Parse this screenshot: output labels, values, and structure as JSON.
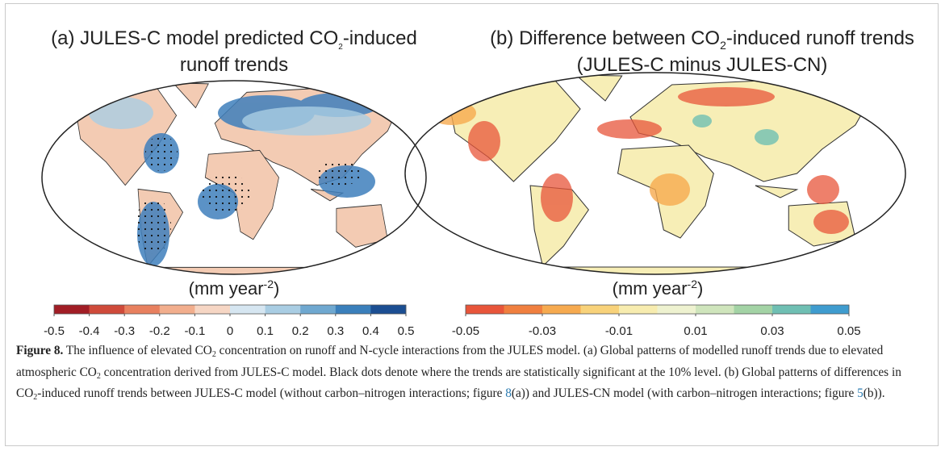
{
  "panels": [
    {
      "title": [
        "(a) JULES-C model predicted CO",
        "2",
        "-induced",
        "runoff trends"
      ],
      "unit": [
        "(mm year",
        "-2",
        ")"
      ],
      "range": [
        -0.5,
        0.5
      ],
      "ticks": [
        -0.5,
        -0.4,
        -0.3,
        -0.2,
        -0.1,
        0,
        0.1,
        0.2,
        0.3,
        0.4,
        0.5
      ],
      "colors": [
        "#a11d25",
        "#cf4a3a",
        "#e8805f",
        "#f2ae8d",
        "#f6d6c4",
        "#d6e6f1",
        "#a9cde3",
        "#6fa8d0",
        "#3a7fbb",
        "#1b4e92"
      ]
    },
    {
      "title": [
        "(b) Difference between CO",
        "2",
        "-induced runoff trends",
        "(JULES-C minus JULES-CN)"
      ],
      "unit": [
        "(mm year",
        "-2",
        ")"
      ],
      "range": [
        -0.05,
        0.05
      ],
      "ticks": [
        -0.05,
        -0.03,
        -0.01,
        0.01,
        0.03,
        0.05
      ],
      "colors": [
        "#e8553a",
        "#f07f3f",
        "#f6aa4f",
        "#f8d27a",
        "#f7ecaf",
        "#eef2d0",
        "#cfe5bc",
        "#a3d3a5",
        "#6fbfb3",
        "#3f9ccf"
      ]
    }
  ],
  "caption": {
    "label": "Figure 8.",
    "text": [
      " The influence of elevated CO",
      "2",
      " concentration on runoff and N-cycle interactions from the JULES model. (a) Global patterns of modelled runoff trends due to elevated atmospheric CO",
      "2",
      " concentration derived from JULES-C model. Black dots denote where the trends are statistically significant at the 10% level. (b) Global patterns of differences in CO",
      "2",
      "-induced runoff trends between JULES-C model (without carbon–nitrogen interactions; figure ",
      "8",
      "(a)) and JULES-CN model (with carbon–nitrogen interactions; figure ",
      "5",
      "(b))."
    ]
  }
}
